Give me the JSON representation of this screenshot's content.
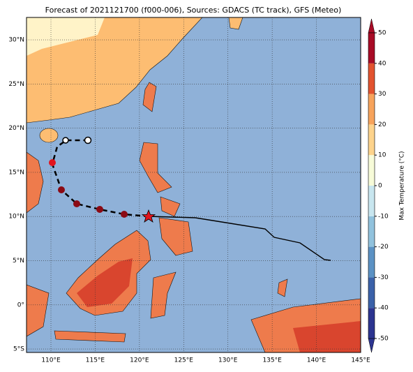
{
  "map": {
    "title": "Forecast of 2021121700 (f000-006), Sources: GDACS (TC track), GFS (Meteo)",
    "xlim": [
      107.24,
      145
    ],
    "ylim": [
      -5.39,
      32.53
    ],
    "xticks": [
      {
        "value": 110,
        "label": "110°E"
      },
      {
        "value": 115,
        "label": "115°E"
      },
      {
        "value": 120,
        "label": "120°E"
      },
      {
        "value": 125,
        "label": "125°E"
      },
      {
        "value": 130,
        "label": "130°E"
      },
      {
        "value": 135,
        "label": "135°E"
      },
      {
        "value": 140,
        "label": "140°E"
      },
      {
        "value": 145,
        "label": "145°E"
      }
    ],
    "yticks": [
      {
        "value": -5,
        "label": "5°S"
      },
      {
        "value": 0,
        "label": "0°"
      },
      {
        "value": 5,
        "label": "5°N"
      },
      {
        "value": 10,
        "label": "10°N"
      },
      {
        "value": 15,
        "label": "15°N"
      },
      {
        "value": 20,
        "label": "20°N"
      },
      {
        "value": 25,
        "label": "25°N"
      },
      {
        "value": 30,
        "label": "30°N"
      }
    ],
    "grid": true,
    "colorbar": {
      "label": "Max Temperature (°C)",
      "lim": [
        -50,
        50
      ],
      "ticks": [
        -50,
        -40,
        -30,
        -20,
        -10,
        0,
        10,
        20,
        30,
        40,
        50
      ],
      "colors": [
        "#2c3490",
        "#3b62a9",
        "#5c92c4",
        "#91c2dd",
        "#c8e6ef",
        "#f7fbd8",
        "#fdd38c",
        "#f7a35c",
        "#e2532f",
        "#a80b26"
      ]
    }
  }
}
